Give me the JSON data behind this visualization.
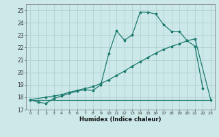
{
  "xlabel": "Humidex (Indice chaleur)",
  "bg_color": "#cce8e8",
  "grid_color": "#aacccc",
  "line_color": "#1a7a6e",
  "xlim": [
    -0.5,
    23.5
  ],
  "ylim": [
    17.0,
    25.5
  ],
  "yticks": [
    17,
    18,
    19,
    20,
    21,
    22,
    23,
    24,
    25
  ],
  "xticks": [
    0,
    1,
    2,
    3,
    4,
    5,
    6,
    7,
    8,
    9,
    10,
    11,
    12,
    13,
    14,
    15,
    16,
    17,
    18,
    19,
    20,
    21,
    22,
    23
  ],
  "flat_line": {
    "x": [
      0,
      23
    ],
    "y": [
      17.8,
      17.8
    ]
  },
  "diag_line": {
    "x": [
      0,
      2,
      3,
      4,
      5,
      6,
      7,
      8,
      9,
      10,
      11,
      12,
      13,
      14,
      15,
      16,
      17,
      18,
      19,
      20,
      21,
      23
    ],
    "y": [
      17.8,
      18.0,
      18.1,
      18.2,
      18.4,
      18.55,
      18.7,
      18.85,
      19.1,
      19.4,
      19.75,
      20.1,
      20.5,
      20.85,
      21.2,
      21.55,
      21.85,
      22.1,
      22.3,
      22.55,
      22.7,
      17.8
    ]
  },
  "zigzag_line": {
    "x": [
      0,
      1,
      2,
      3,
      4,
      5,
      6,
      7,
      8,
      9,
      10,
      11,
      12,
      13,
      14,
      15,
      16,
      17,
      18,
      19,
      20,
      21,
      22
    ],
    "y": [
      17.8,
      17.6,
      17.5,
      17.9,
      18.1,
      18.3,
      18.5,
      18.6,
      18.55,
      19.0,
      21.5,
      23.35,
      22.6,
      23.0,
      24.85,
      24.85,
      24.7,
      23.85,
      23.3,
      23.3,
      22.55,
      22.1,
      18.7
    ]
  }
}
